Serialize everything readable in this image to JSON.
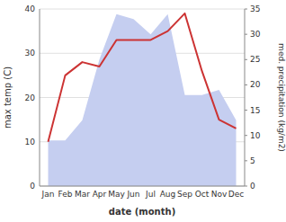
{
  "chart_data": {
    "type": "line",
    "categories": [
      "Jan",
      "Feb",
      "Mar",
      "Apr",
      "May",
      "Jun",
      "Jul",
      "Aug",
      "Sep",
      "Oct",
      "Nov",
      "Dec"
    ],
    "series": [
      {
        "type": "area",
        "axis": "y2",
        "color": "#c5cef0",
        "values": [
          9,
          9,
          13,
          25,
          34,
          33,
          30,
          34,
          18,
          18,
          19,
          13
        ]
      },
      {
        "type": "line",
        "color": "#cc3333",
        "values": [
          10,
          25,
          28,
          27,
          33,
          33,
          33,
          35,
          39,
          26,
          15,
          13
        ]
      }
    ],
    "xlabel": "date (month)",
    "ylabel": "max temp (C)",
    "y2label": "med. precipitation (kg/m2)",
    "ylim": [
      0,
      40
    ],
    "yticks": [
      0,
      10,
      20,
      30,
      40
    ],
    "y2lim": [
      0,
      35
    ],
    "y2ticks": [
      0,
      5,
      10,
      15,
      20,
      25,
      30,
      35
    ],
    "grid": true
  }
}
